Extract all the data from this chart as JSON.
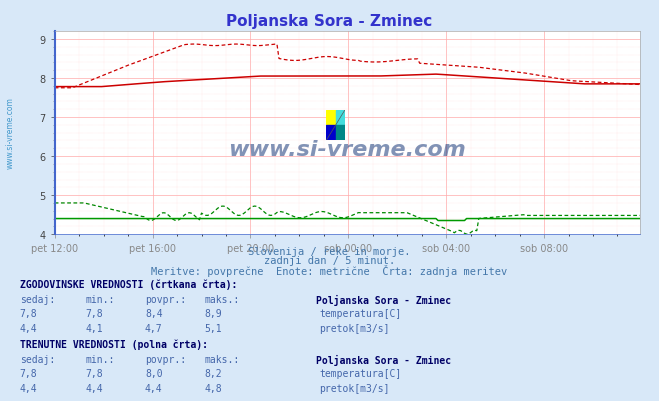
{
  "title": "Poljanska Sora - Zminec",
  "title_color": "#3333cc",
  "background_color": "#d8e8f8",
  "plot_bg_color": "#ffffff",
  "xlabel_color": "#4488cc",
  "ylabel_range": [
    4.0,
    9.2
  ],
  "x_tick_labels": [
    "pet 12:00",
    "pet 16:00",
    "pet 20:00",
    "sob 00:00",
    "sob 04:00",
    "sob 08:00"
  ],
  "x_tick_positions": [
    0,
    48,
    96,
    144,
    192,
    240
  ],
  "total_points": 288,
  "temp_dashed_color": "#cc0000",
  "temp_solid_color": "#cc0000",
  "flow_dashed_color": "#008800",
  "flow_solid_color": "#009900",
  "watermark_text": "www.si-vreme.com",
  "watermark_color": "#1a3a7a",
  "subtitle1": "Slovenija / reke in morje.",
  "subtitle2": "zadnji dan / 5 minut.",
  "subtitle3": "Meritve: povprečne  Enote: metrične  Črta: zadnja meritev",
  "table_header1": "ZGODOVINSKE VREDNOSTI (črtkana črta):",
  "table_header2": "TRENUTNE VREDNOSTI (polna črta):",
  "col_headers": [
    "sedaj:",
    "min.:",
    "povpr.:",
    "maks.:",
    "Poljanska Sora - Zminec"
  ],
  "hist_temp": {
    "sedaj": "7,8",
    "min": "7,8",
    "povpr": "8,4",
    "maks": "8,9",
    "label": "temperatura[C]"
  },
  "hist_flow": {
    "sedaj": "4,4",
    "min": "4,1",
    "povpr": "4,7",
    "maks": "5,1",
    "label": "pretok[m3/s]"
  },
  "curr_temp": {
    "sedaj": "7,8",
    "min": "7,8",
    "povpr": "8,0",
    "maks": "8,2",
    "label": "temperatura[C]"
  },
  "curr_flow": {
    "sedaj": "4,4",
    "min": "4,4",
    "povpr": "4,4",
    "maks": "4,8",
    "label": "pretok[m3/s]"
  },
  "temp_color_box": "#cc0000",
  "flow_color_box": "#00aa00",
  "sidebar_text": "www.si-vreme.com",
  "sidebar_color": "#4499cc",
  "logo_colors": [
    "#ffff00",
    "#00ccff",
    "#0000cc",
    "#006688"
  ]
}
